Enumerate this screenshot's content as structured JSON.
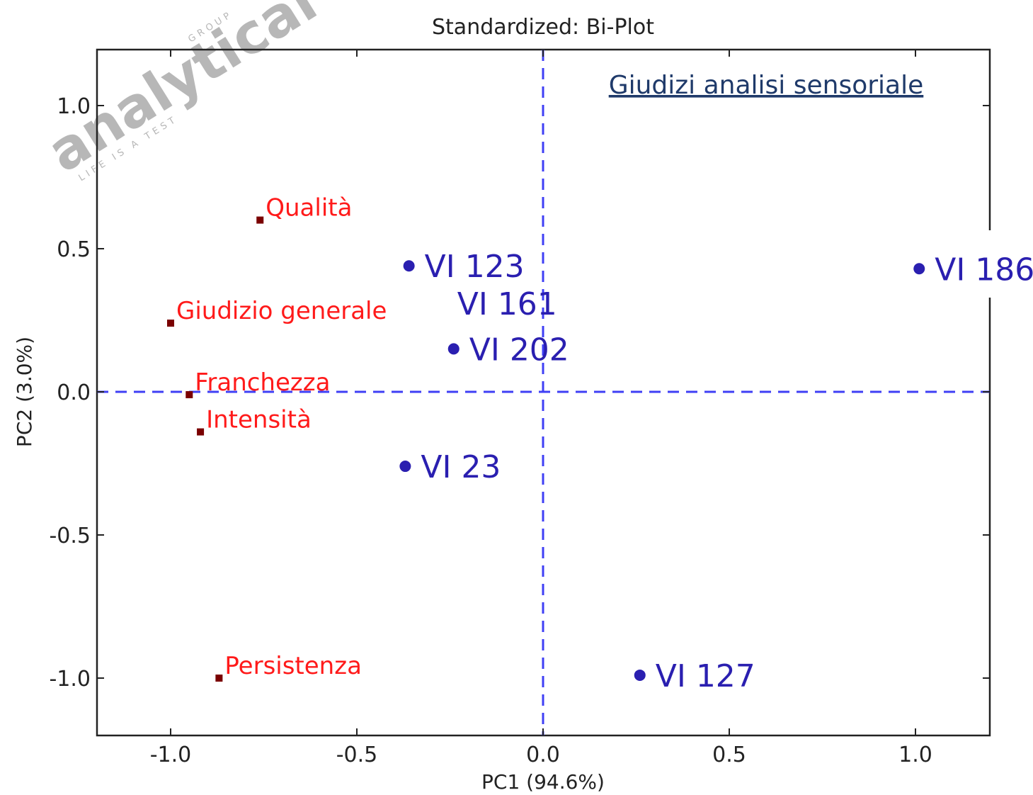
{
  "chart_data": {
    "type": "scatter",
    "title": "Standardized: Bi-Plot",
    "subtitle": "Giudizi analisi sensoriale",
    "xlabel": "PC1 (94.6%)",
    "ylabel": "PC2 (3.0%)",
    "xlim": [
      -1.2,
      1.2
    ],
    "ylim": [
      -1.2,
      1.2
    ],
    "x_ticks": [
      "-1.0",
      "-0.5",
      "0.0",
      "0.5",
      "1.0"
    ],
    "y_ticks": [
      "1.0",
      "0.5",
      "0.0",
      "-0.5",
      "-1.0"
    ],
    "reference_lines": {
      "x": 0,
      "y": 0,
      "style": "dashed",
      "color": "#3f3ff5"
    },
    "series": [
      {
        "name": "variables",
        "color": "#ff1a1a",
        "marker_color": "#7a0000",
        "points": [
          {
            "label": "Qualità",
            "x": -0.76,
            "y": 0.6
          },
          {
            "label": "Giudizio generale",
            "x": -1.0,
            "y": 0.24
          },
          {
            "label": "Franchezza",
            "x": -0.95,
            "y": -0.01
          },
          {
            "label": "Intensità",
            "x": -0.92,
            "y": -0.14
          },
          {
            "label": "Persistenza",
            "x": -0.87,
            "y": -1.0
          }
        ]
      },
      {
        "name": "samples",
        "color": "#2a1fb0",
        "points": [
          {
            "label": "VI 123",
            "x": -0.36,
            "y": 0.44,
            "marker": true
          },
          {
            "label": "VI 161",
            "x": -0.24,
            "y": 0.31,
            "marker": false
          },
          {
            "label": "VI 202",
            "x": -0.24,
            "y": 0.15,
            "marker": true
          },
          {
            "label": "VI 23",
            "x": -0.37,
            "y": -0.26,
            "marker": true
          },
          {
            "label": "VI 186",
            "x": 1.01,
            "y": 0.43,
            "marker": true
          },
          {
            "label": "VI 127",
            "x": 0.26,
            "y": -0.99,
            "marker": true
          }
        ]
      }
    ]
  },
  "watermark": {
    "text": "analytical",
    "small_top": "GROUP",
    "small_bottom": "LIFE IS A TEST"
  }
}
